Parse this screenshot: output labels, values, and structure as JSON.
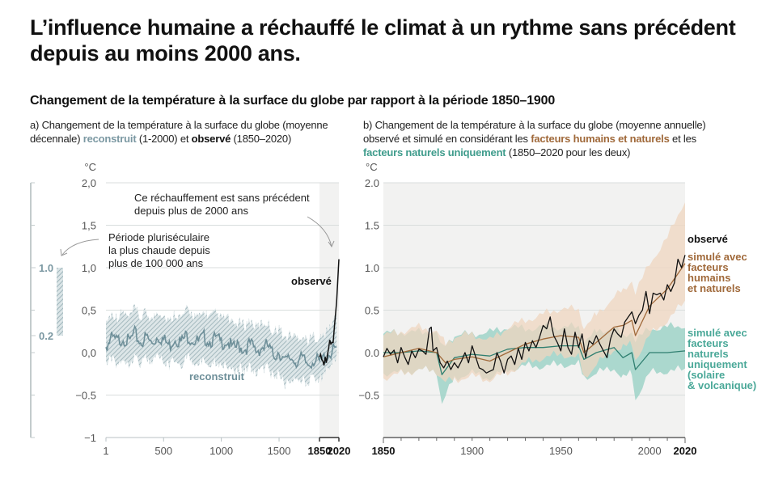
{
  "title": "L’influence humaine a réchauffé le climat à un rythme sans précédent depuis au moins 2000 ans.",
  "subtitle": "Changement de la température à la surface du globe par rapport à la période 1850–1900",
  "colors": {
    "reconstructed": "#6e8f99",
    "reconstructed_band": "#b4c7cc",
    "observed": "#111111",
    "human_natural": "#a0693a",
    "human_natural_band": "#efd6bf",
    "natural_only": "#2f7f70",
    "natural_only_band": "#9fd3c8",
    "shade": "#f2f2f1",
    "grid": "#d9dedd"
  },
  "panel_a": {
    "caption_pre": "a) Changement de la température à la surface du globe (moyenne décennale) ",
    "caption_recon": "reconstruit",
    "caption_mid": " (1-2000) et ",
    "caption_obs": "observé",
    "caption_post": " (1850–2020)"
  },
  "panel_b": {
    "caption_pre": "b) Changement de la température à la surface du globe (moyenne annuelle) observé et simulé en considérant les ",
    "caption_human": "facteurs humains et naturels",
    "caption_mid": " et les ",
    "caption_nat": "facteurs naturels uniquement",
    "caption_post": " (1850–2020 pour les deux)"
  },
  "chart_data": [
    {
      "type": "line",
      "title": "a) Changement de la température à la surface du globe (moyenne décennale) reconstruit (1-2000) et observé (1850–2020)",
      "ylabel": "°C",
      "ylim": [
        -1,
        2
      ],
      "yticks": [
        "2,0",
        "1,5",
        "1,0",
        "0,5",
        "0,0",
        "−0.5",
        "−1"
      ],
      "ytick_values": [
        2,
        1.5,
        1,
        0.5,
        0,
        -0.5,
        -1
      ],
      "xticks": [
        "1",
        "500",
        "1000",
        "1500",
        "1850",
        "2020"
      ],
      "xtick_values": [
        1,
        500,
        1000,
        1500,
        1850,
        2020
      ],
      "xlim": [
        1,
        2020
      ],
      "grid": true,
      "shaded_period": [
        1850,
        2020
      ],
      "side_scale": {
        "range": [
          -1,
          2
        ],
        "bar_label_top": "1.0",
        "bar_label_bottom": "0.2",
        "bar_range": [
          0.2,
          1.0
        ],
        "annotation": "Période pluriséculaire la plus chaude depuis plus de 100 000 ans"
      },
      "annotations": [
        {
          "text": "Ce réchauffement est sans précédent depuis plus de 2000 ans",
          "lines": [
            "Ce réchauffement est sans précédent",
            "depuis plus de 2000 ans"
          ]
        },
        {
          "text": "Période pluriséculaire la plus chaude depuis plus de 100 000 ans",
          "lines": [
            "Période pluriséculaire",
            "la plus chaude depuis",
            "plus de 100 000 ans"
          ]
        }
      ],
      "series": [
        {
          "name": "reconstruit",
          "label": "reconstruit",
          "x": [
            1,
            50,
            100,
            150,
            200,
            250,
            300,
            350,
            400,
            450,
            500,
            550,
            600,
            650,
            700,
            750,
            800,
            850,
            900,
            950,
            1000,
            1050,
            1100,
            1150,
            1200,
            1250,
            1300,
            1350,
            1400,
            1450,
            1500,
            1550,
            1600,
            1650,
            1700,
            1750,
            1800,
            1850,
            1900,
            1950,
            2000
          ],
          "values": [
            0.08,
            0.16,
            0.13,
            0.18,
            0.12,
            0.22,
            0.12,
            0.18,
            0.1,
            0.2,
            0.15,
            0.08,
            0.18,
            0.12,
            0.2,
            0.16,
            0.12,
            0.18,
            0.14,
            0.16,
            0.12,
            0.14,
            0.04,
            0.08,
            0.04,
            0.1,
            0.02,
            0.06,
            0.08,
            -0.04,
            0.02,
            -0.12,
            -0.06,
            -0.1,
            -0.08,
            -0.14,
            -0.08,
            -0.12,
            -0.05,
            0.0,
            0.05
          ],
          "lower": [
            -0.12,
            -0.06,
            -0.12,
            -0.05,
            -0.1,
            -0.02,
            -0.1,
            -0.04,
            -0.12,
            -0.03,
            -0.08,
            -0.15,
            -0.06,
            -0.12,
            -0.03,
            -0.07,
            -0.12,
            -0.06,
            -0.1,
            -0.08,
            -0.12,
            -0.1,
            -0.2,
            -0.16,
            -0.2,
            -0.14,
            -0.22,
            -0.18,
            -0.16,
            -0.28,
            -0.22,
            -0.36,
            -0.3,
            -0.34,
            -0.3,
            -0.34,
            -0.28,
            -0.3,
            -0.2,
            -0.12,
            -0.05
          ],
          "upper": [
            0.35,
            0.44,
            0.4,
            0.46,
            0.38,
            0.5,
            0.38,
            0.46,
            0.36,
            0.48,
            0.42,
            0.34,
            0.46,
            0.38,
            0.48,
            0.44,
            0.38,
            0.46,
            0.4,
            0.44,
            0.38,
            0.4,
            0.3,
            0.34,
            0.3,
            0.36,
            0.28,
            0.32,
            0.34,
            0.22,
            0.28,
            0.14,
            0.2,
            0.16,
            0.18,
            0.12,
            0.18,
            0.14,
            0.2,
            0.3,
            0.42
          ]
        },
        {
          "name": "observé",
          "label": "observé",
          "x": [
            1850,
            1860,
            1870,
            1880,
            1890,
            1900,
            1910,
            1920,
            1930,
            1940,
            1950,
            1960,
            1970,
            1980,
            1990,
            2000,
            2010,
            2020
          ],
          "values": [
            -0.05,
            -0.02,
            -0.08,
            -0.1,
            -0.15,
            -0.05,
            -0.12,
            -0.02,
            0.05,
            0.15,
            0.1,
            0.12,
            0.12,
            0.3,
            0.45,
            0.6,
            0.85,
            1.1
          ]
        }
      ]
    },
    {
      "type": "area",
      "title": "b) Changement de la température à la surface du globe (moyenne annuelle) observé et simulé en considérant les facteurs humains et naturels et les facteurs naturels uniquement (1850–2020 pour les deux)",
      "ylabel": "°C",
      "ylim": [
        -1,
        2
      ],
      "yticks": [
        "2.0",
        "1.5",
        "1.0",
        "0.5",
        "0.0",
        "−0.5"
      ],
      "ytick_values": [
        2,
        1.5,
        1,
        0.5,
        0,
        -0.5
      ],
      "xticks": [
        "1850",
        "1900",
        "1950",
        "2000",
        "2020"
      ],
      "xtick_values": [
        1850,
        1900,
        1950,
        2000,
        2020
      ],
      "xlim": [
        1850,
        2020
      ],
      "grid": true,
      "legend_placement": "right",
      "series": [
        {
          "name": "observé",
          "label": "observé",
          "x": [
            1850,
            1852,
            1854,
            1856,
            1858,
            1860,
            1862,
            1864,
            1866,
            1868,
            1870,
            1872,
            1874,
            1876,
            1877,
            1878,
            1880,
            1882,
            1884,
            1886,
            1888,
            1890,
            1892,
            1894,
            1896,
            1898,
            1900,
            1902,
            1904,
            1906,
            1908,
            1910,
            1912,
            1914,
            1916,
            1918,
            1920,
            1922,
            1924,
            1926,
            1928,
            1930,
            1932,
            1934,
            1936,
            1938,
            1940,
            1942,
            1944,
            1945,
            1946,
            1948,
            1950,
            1952,
            1954,
            1956,
            1958,
            1960,
            1962,
            1964,
            1966,
            1968,
            1970,
            1972,
            1974,
            1976,
            1978,
            1980,
            1982,
            1984,
            1986,
            1988,
            1990,
            1992,
            1994,
            1996,
            1998,
            2000,
            2002,
            2004,
            2006,
            2008,
            2010,
            2012,
            2014,
            2016,
            2018,
            2020
          ],
          "values": [
            -0.05,
            0.05,
            -0.02,
            0.03,
            -0.12,
            0.06,
            -0.05,
            -0.14,
            0.02,
            -0.06,
            0.04,
            0.02,
            -0.02,
            0.28,
            0.3,
            0.02,
            0.06,
            -0.12,
            -0.18,
            -0.1,
            -0.2,
            -0.12,
            -0.18,
            -0.1,
            0.0,
            -0.12,
            0.08,
            -0.05,
            -0.18,
            -0.2,
            -0.24,
            -0.22,
            -0.2,
            0.0,
            -0.1,
            -0.24,
            -0.08,
            -0.04,
            -0.14,
            0.05,
            -0.08,
            0.12,
            0.02,
            0.14,
            0.06,
            0.18,
            0.32,
            0.28,
            0.42,
            0.3,
            0.2,
            0.12,
            0.02,
            0.28,
            0.06,
            -0.02,
            0.24,
            0.06,
            0.22,
            -0.06,
            0.14,
            0.1,
            0.2,
            0.1,
            0.02,
            -0.06,
            0.16,
            0.28,
            0.22,
            0.18,
            0.36,
            0.42,
            0.48,
            0.34,
            0.44,
            0.5,
            0.72,
            0.46,
            0.7,
            0.68,
            0.7,
            0.62,
            0.8,
            0.72,
            0.82,
            1.1,
            1.0,
            1.15
          ]
        },
        {
          "name": "simulé avec facteurs humains et naturels",
          "label_lines": [
            "simulé avec",
            "facteurs",
            "humains",
            "et naturels"
          ],
          "x": [
            1850,
            1860,
            1870,
            1880,
            1885,
            1890,
            1900,
            1910,
            1920,
            1930,
            1940,
            1950,
            1960,
            1963,
            1970,
            1980,
            1985,
            1990,
            1992,
            2000,
            2010,
            2020
          ],
          "values": [
            -0.05,
            0.0,
            0.05,
            0.0,
            -0.12,
            -0.08,
            -0.05,
            -0.1,
            0.0,
            0.1,
            0.16,
            0.2,
            0.18,
            0.0,
            0.12,
            0.3,
            0.32,
            0.38,
            0.2,
            0.55,
            0.75,
            1.05
          ],
          "lower": [
            -0.3,
            -0.25,
            -0.2,
            -0.22,
            -0.35,
            -0.32,
            -0.28,
            -0.32,
            -0.24,
            -0.12,
            -0.06,
            -0.02,
            -0.06,
            -0.3,
            -0.14,
            0.04,
            0.06,
            0.1,
            -0.08,
            0.2,
            0.38,
            0.6
          ],
          "upper": [
            0.2,
            0.25,
            0.3,
            0.25,
            0.1,
            0.18,
            0.22,
            0.14,
            0.3,
            0.38,
            0.45,
            0.52,
            0.5,
            0.3,
            0.44,
            0.66,
            0.72,
            0.86,
            0.7,
            1.05,
            1.35,
            1.8
          ]
        },
        {
          "name": "simulé avec facteurs naturels uniquement (solaire & volcanique)",
          "label_lines": [
            "simulé avec",
            "facteurs",
            "naturels",
            "uniquement",
            "(solaire",
            "& volcanique)"
          ],
          "x": [
            1850,
            1860,
            1870,
            1880,
            1883,
            1890,
            1900,
            1910,
            1920,
            1930,
            1940,
            1950,
            1960,
            1963,
            1970,
            1980,
            1985,
            1990,
            1992,
            2000,
            2010,
            2020
          ],
          "values": [
            0.0,
            0.0,
            0.02,
            0.0,
            -0.26,
            -0.06,
            -0.02,
            -0.04,
            0.04,
            0.06,
            0.06,
            0.08,
            0.08,
            -0.08,
            0.0,
            0.06,
            -0.06,
            0.0,
            -0.2,
            0.0,
            0.0,
            0.02
          ],
          "lower": [
            -0.24,
            -0.24,
            -0.2,
            -0.22,
            -0.6,
            -0.3,
            -0.24,
            -0.3,
            -0.2,
            -0.16,
            -0.16,
            -0.14,
            -0.14,
            -0.3,
            -0.24,
            -0.18,
            -0.3,
            -0.24,
            -0.55,
            -0.24,
            -0.22,
            -0.2
          ],
          "upper": [
            0.22,
            0.24,
            0.24,
            0.24,
            0.05,
            0.2,
            0.22,
            0.24,
            0.3,
            0.28,
            0.3,
            0.3,
            0.3,
            0.14,
            0.24,
            0.3,
            0.18,
            0.26,
            0.14,
            0.28,
            0.3,
            0.32
          ]
        }
      ]
    }
  ]
}
